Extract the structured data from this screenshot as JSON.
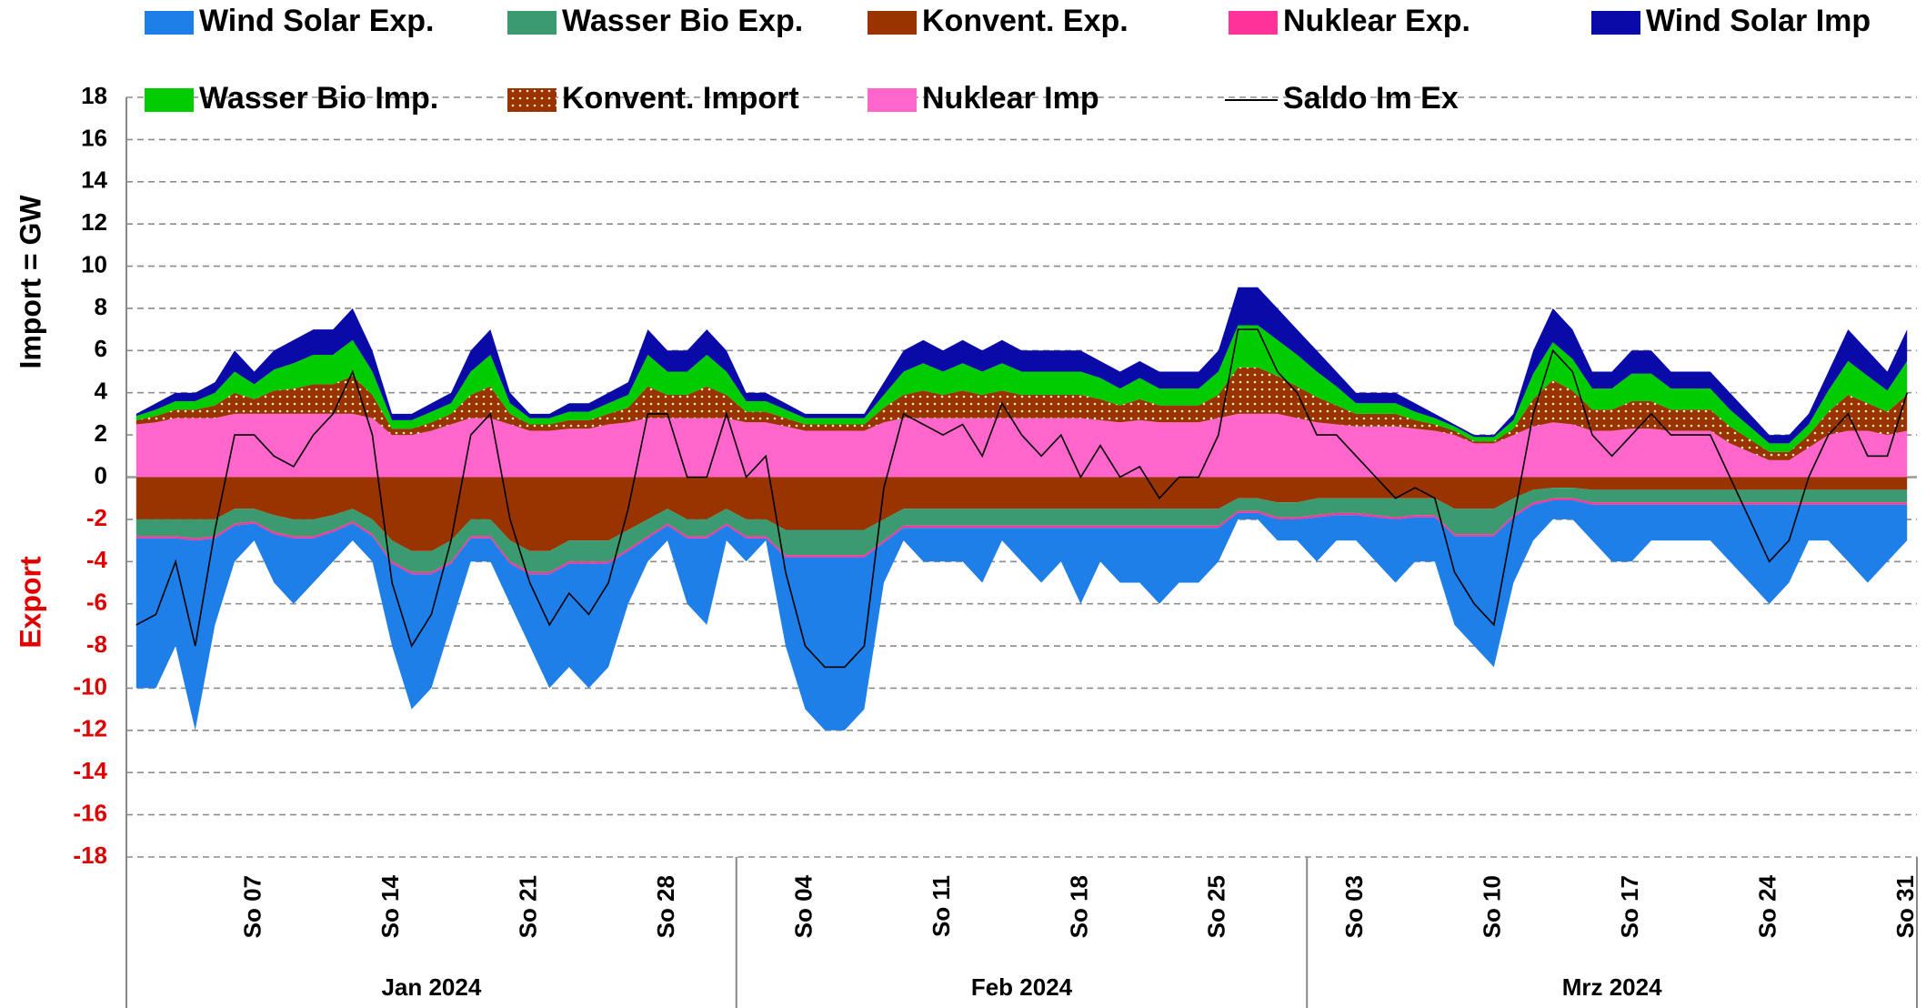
{
  "chart_data": {
    "type": "area",
    "ylabel": "Import  =  GW",
    "ylabel_export": "Export",
    "negative_color": "#e00000",
    "ylim": [
      -18,
      18
    ],
    "yticks": [
      -18,
      -16,
      -14,
      -12,
      -10,
      -8,
      -6,
      -4,
      -2,
      0,
      2,
      4,
      6,
      8,
      10,
      12,
      14,
      16,
      18
    ],
    "grid": true,
    "legend": "top",
    "categories": [
      null,
      null,
      null,
      null,
      null,
      null,
      "So 07",
      null,
      null,
      null,
      null,
      null,
      null,
      "So 14",
      null,
      null,
      null,
      null,
      null,
      null,
      "So 21",
      null,
      null,
      null,
      null,
      null,
      null,
      "So 28",
      null,
      null,
      null,
      null,
      null,
      null,
      "So 04",
      null,
      null,
      null,
      null,
      null,
      null,
      "So 11",
      null,
      null,
      null,
      null,
      null,
      null,
      "So 18",
      null,
      null,
      null,
      null,
      null,
      null,
      "So 25",
      null,
      null,
      null,
      null,
      null,
      null,
      "So 03",
      null,
      null,
      null,
      null,
      null,
      null,
      "So 10",
      null,
      null,
      null,
      null,
      null,
      null,
      "So 17",
      null,
      null,
      null,
      null,
      null,
      null,
      "So 24",
      null,
      null,
      null,
      null,
      null,
      null,
      "So 31"
    ],
    "month_groups": [
      {
        "label": "Jan 2024",
        "days": 31
      },
      {
        "label": "Feb 2024",
        "days": 29
      },
      {
        "label": "Mrz 2024",
        "days": 31
      }
    ],
    "series": [
      {
        "name": "Wind Solar Exp.",
        "color": "#1f7fe8",
        "values": [
          -7.1,
          -7.1,
          -5.1,
          -9,
          -4.1,
          -1.7,
          -0.8,
          -2.3,
          -3.1,
          -2.1,
          -1.4,
          -0.8,
          -1.2,
          -3.9,
          -6.4,
          -5.4,
          -2.9,
          -1.1,
          -1.1,
          -1.9,
          -3.4,
          -5.4,
          -4.9,
          -5.9,
          -4.9,
          -2.5,
          -1.1,
          -0.7,
          -3.1,
          -4.1,
          -0.7,
          -1.1,
          -0.1,
          -4.2,
          -7.2,
          -8.2,
          -8.2,
          -7.2,
          -1.9,
          -0.6,
          -1.6,
          -1.6,
          -1.6,
          -2.6,
          -0.6,
          -1.6,
          -2.6,
          -1.6,
          -3.6,
          -1.6,
          -2.6,
          -2.6,
          -3.6,
          -2.6,
          -2.6,
          -1.6,
          -0.3,
          -0.3,
          -1,
          -1,
          -2.1,
          -1.2,
          -1.2,
          -2.1,
          -3,
          -2.1,
          -2.1,
          -4.2,
          -5.2,
          -6.2,
          -3.1,
          -1.7,
          -0.9,
          -0.9,
          -1.7,
          -2.7,
          -2.7,
          -1.7,
          -1.7,
          -1.7,
          -1.7,
          -2.7,
          -3.7,
          -4.7,
          -3.7,
          -1.7,
          -1.7,
          -2.7,
          -3.7,
          -2.7,
          -1.7
        ]
      },
      {
        "name": "Wasser Bio Exp.",
        "color": "#3b9a70",
        "values": [
          -0.8,
          -0.8,
          -0.8,
          -0.9,
          -0.8,
          -0.7,
          -0.6,
          -0.8,
          -0.8,
          -0.8,
          -0.7,
          -0.6,
          -0.7,
          -1,
          -1,
          -1,
          -1,
          -0.8,
          -0.8,
          -1,
          -1,
          -1,
          -1,
          -1,
          -1,
          -0.9,
          -0.8,
          -0.7,
          -0.8,
          -0.8,
          -0.7,
          -0.8,
          -0.8,
          -1.2,
          -1.2,
          -1.2,
          -1.2,
          -1.2,
          -1,
          -0.8,
          -0.8,
          -0.8,
          -0.8,
          -0.8,
          -0.8,
          -0.8,
          -0.8,
          -0.8,
          -0.8,
          -0.8,
          -0.8,
          -0.8,
          -0.8,
          -0.8,
          -0.8,
          -0.8,
          -0.6,
          -0.6,
          -0.7,
          -0.7,
          -0.8,
          -0.7,
          -0.7,
          -0.8,
          -0.9,
          -0.8,
          -0.8,
          -1.2,
          -1.2,
          -1.2,
          -0.8,
          -0.6,
          -0.5,
          -0.5,
          -0.6,
          -0.6,
          -0.6,
          -0.6,
          -0.6,
          -0.6,
          -0.6,
          -0.6,
          -0.6,
          -0.6,
          -0.6,
          -0.6,
          -0.6,
          -0.6,
          -0.6,
          -0.6,
          -0.6
        ]
      },
      {
        "name": "Konvent. Exp.",
        "color": "#993300",
        "values": [
          -2,
          -2,
          -2,
          -2,
          -2,
          -1.5,
          -1.5,
          -1.8,
          -2,
          -2,
          -1.8,
          -1.5,
          -2,
          -3,
          -3.5,
          -3.5,
          -3,
          -2,
          -2,
          -3,
          -3.5,
          -3.5,
          -3,
          -3,
          -3,
          -2.5,
          -2,
          -1.5,
          -2,
          -2,
          -1.5,
          -2,
          -2,
          -2.5,
          -2.5,
          -2.5,
          -2.5,
          -2.5,
          -2,
          -1.5,
          -1.5,
          -1.5,
          -1.5,
          -1.5,
          -1.5,
          -1.5,
          -1.5,
          -1.5,
          -1.5,
          -1.5,
          -1.5,
          -1.5,
          -1.5,
          -1.5,
          -1.5,
          -1.5,
          -1,
          -1,
          -1.2,
          -1.2,
          -1,
          -1,
          -1,
          -1,
          -1,
          -1,
          -1,
          -1.5,
          -1.5,
          -1.5,
          -1,
          -0.6,
          -0.5,
          -0.5,
          -0.6,
          -0.6,
          -0.6,
          -0.6,
          -0.6,
          -0.6,
          -0.6,
          -0.6,
          -0.6,
          -0.6,
          -0.6,
          -0.6,
          -0.6,
          -0.6,
          -0.6,
          -0.6,
          -0.6
        ]
      },
      {
        "name": "Nuklear Exp.",
        "color": "#ff3399",
        "values": [
          -0.1,
          -0.1,
          -0.1,
          -0.1,
          -0.1,
          -0.1,
          -0.1,
          -0.1,
          -0.1,
          -0.1,
          -0.1,
          -0.1,
          -0.1,
          -0.1,
          -0.1,
          -0.1,
          -0.1,
          -0.1,
          -0.1,
          -0.1,
          -0.1,
          -0.1,
          -0.1,
          -0.1,
          -0.1,
          -0.1,
          -0.1,
          -0.1,
          -0.1,
          -0.1,
          -0.1,
          -0.1,
          -0.1,
          -0.1,
          -0.1,
          -0.1,
          -0.1,
          -0.1,
          -0.1,
          -0.1,
          -0.1,
          -0.1,
          -0.1,
          -0.1,
          -0.1,
          -0.1,
          -0.1,
          -0.1,
          -0.1,
          -0.1,
          -0.1,
          -0.1,
          -0.1,
          -0.1,
          -0.1,
          -0.1,
          -0.1,
          -0.1,
          -0.1,
          -0.1,
          -0.1,
          -0.1,
          -0.1,
          -0.1,
          -0.1,
          -0.1,
          -0.1,
          -0.1,
          -0.1,
          -0.1,
          -0.1,
          -0.1,
          -0.1,
          -0.1,
          -0.1,
          -0.1,
          -0.1,
          -0.1,
          -0.1,
          -0.1,
          -0.1,
          -0.1,
          -0.1,
          -0.1,
          -0.1,
          -0.1,
          -0.1,
          -0.1,
          -0.1,
          -0.1,
          -0.1
        ]
      },
      {
        "name": "Wind Solar Imp",
        "color": "#0a0aa8",
        "values": [
          0.1,
          0.3,
          0.4,
          0.4,
          0.5,
          1,
          0.6,
          0.9,
          1.1,
          1.2,
          1.2,
          1.5,
          1,
          0.3,
          0.3,
          0.4,
          0.5,
          1,
          1.2,
          0.5,
          0.2,
          0.2,
          0.4,
          0.4,
          0.5,
          0.6,
          1.2,
          1,
          1,
          1.2,
          1,
          0.4,
          0.4,
          0.3,
          0.2,
          0.2,
          0.2,
          0.2,
          0.6,
          1,
          1.1,
          1,
          1.1,
          1,
          1.1,
          1,
          1,
          1,
          1,
          0.8,
          0.8,
          0.8,
          0.8,
          0.8,
          0.8,
          1,
          1.8,
          1.8,
          1.5,
          1.2,
          1,
          0.7,
          0.5,
          0.5,
          0.5,
          0.4,
          0.2,
          0.1,
          0.1,
          0.1,
          0.3,
          1.1,
          1.6,
          1.4,
          0.8,
          0.8,
          1.1,
          1.1,
          0.8,
          0.8,
          0.8,
          0.8,
          0.6,
          0.4,
          0.4,
          0.5,
          0.9,
          1.5,
          1.2,
          0.9,
          1.5
        ]
      },
      {
        "name": "Wasser Bio Imp.",
        "color": "#00cc00",
        "values": [
          0.2,
          0.3,
          0.4,
          0.4,
          0.6,
          1,
          0.7,
          1,
          1.2,
          1.4,
          1.4,
          1.7,
          1.1,
          0.4,
          0.4,
          0.5,
          0.5,
          1.1,
          1.5,
          0.5,
          0.3,
          0.3,
          0.4,
          0.4,
          0.5,
          0.6,
          1.5,
          1.1,
          1.1,
          1.5,
          1.1,
          0.5,
          0.5,
          0.4,
          0.3,
          0.3,
          0.3,
          0.3,
          0.6,
          1.1,
          1.3,
          1.1,
          1.3,
          1.1,
          1.3,
          1.1,
          1.1,
          1.1,
          1.1,
          1,
          0.8,
          1,
          0.8,
          0.8,
          0.8,
          1.1,
          2,
          2,
          1.7,
          1.5,
          1.2,
          0.9,
          0.5,
          0.5,
          0.5,
          0.4,
          0.3,
          0.2,
          0.2,
          0.2,
          0.4,
          1.2,
          1.8,
          1.5,
          1,
          1,
          1.3,
          1.3,
          1,
          1,
          1,
          0.8,
          0.6,
          0.4,
          0.4,
          0.5,
          1,
          1.6,
          1.3,
          1,
          1.6
        ]
      },
      {
        "name": "Konvent. Import",
        "color": "#993300",
        "values": [
          0.2,
          0.3,
          0.4,
          0.4,
          0.6,
          1,
          0.7,
          1.1,
          1.2,
          1.4,
          1.4,
          1.8,
          1.1,
          0.3,
          0.3,
          0.4,
          0.5,
          1.1,
          1.5,
          0.5,
          0.3,
          0.3,
          0.4,
          0.4,
          0.5,
          0.7,
          1.5,
          1.1,
          1.1,
          1.5,
          1.1,
          0.5,
          0.5,
          0.4,
          0.3,
          0.3,
          0.3,
          0.3,
          0.7,
          1.1,
          1.3,
          1.1,
          1.3,
          1.1,
          1.3,
          1.1,
          1.1,
          1.1,
          1.1,
          1,
          0.8,
          1,
          0.8,
          0.8,
          0.8,
          1.1,
          2.2,
          2.2,
          1.8,
          1.5,
          1.2,
          0.9,
          0.6,
          0.6,
          0.6,
          0.4,
          0.3,
          0.2,
          0.1,
          0.1,
          0.3,
          1.3,
          2,
          1.6,
          1,
          1,
          1.3,
          1.3,
          1,
          1,
          1,
          0.8,
          0.6,
          0.4,
          0.4,
          0.6,
          1.1,
          1.7,
          1.3,
          1.1,
          1.7
        ]
      },
      {
        "name": "Nuklear Imp",
        "color": "#ff66cc",
        "values": [
          2.5,
          2.6,
          2.8,
          2.8,
          2.8,
          3,
          3,
          3,
          3,
          3,
          3,
          3,
          2.8,
          2,
          2,
          2.2,
          2.5,
          2.8,
          2.8,
          2.5,
          2.2,
          2.2,
          2.3,
          2.3,
          2.5,
          2.6,
          2.8,
          2.8,
          2.8,
          2.8,
          2.8,
          2.6,
          2.6,
          2.4,
          2.2,
          2.2,
          2.2,
          2.2,
          2.6,
          2.8,
          2.8,
          2.8,
          2.8,
          2.8,
          2.8,
          2.8,
          2.8,
          2.8,
          2.8,
          2.7,
          2.6,
          2.7,
          2.6,
          2.6,
          2.6,
          2.8,
          3,
          3,
          3,
          2.8,
          2.6,
          2.5,
          2.4,
          2.4,
          2.4,
          2.3,
          2.2,
          2,
          1.6,
          1.6,
          2,
          2.4,
          2.6,
          2.5,
          2.2,
          2.2,
          2.3,
          2.3,
          2.2,
          2.2,
          2.2,
          1.6,
          1.2,
          0.8,
          0.8,
          1.4,
          2,
          2.2,
          2.2,
          2,
          2.2
        ]
      },
      {
        "name": "Saldo Im Ex",
        "color": "#000000",
        "type": "line",
        "values": [
          -7,
          -6.5,
          -4,
          -8,
          -2.5,
          2,
          2,
          1,
          0.5,
          2,
          3,
          5,
          2,
          -5,
          -8,
          -6.5,
          -3,
          2,
          3,
          -2,
          -5,
          -7,
          -5.5,
          -6.5,
          -5,
          -1.5,
          3,
          3,
          0,
          0,
          3,
          0,
          1,
          -4.5,
          -8,
          -9,
          -9,
          -8,
          -0.5,
          3,
          2.5,
          2,
          2.5,
          1,
          3.5,
          2,
          1,
          2,
          0,
          1.5,
          0,
          0.5,
          -1,
          0,
          0,
          2,
          7,
          7,
          5,
          4,
          2,
          2,
          1,
          0,
          -1,
          -0.5,
          -1,
          -4.5,
          -6,
          -7,
          -2,
          3,
          6,
          5,
          2,
          1,
          2,
          3,
          2,
          2,
          2,
          0,
          -2,
          -4,
          -3,
          0,
          2,
          3,
          1,
          1,
          4
        ]
      }
    ]
  }
}
